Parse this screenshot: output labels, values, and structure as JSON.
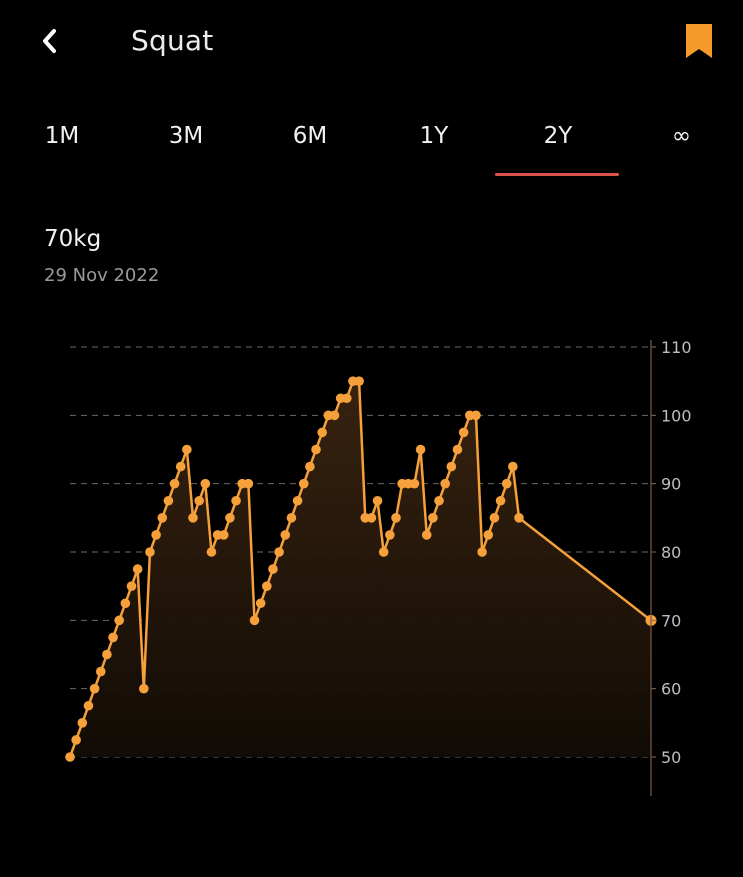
{
  "header": {
    "title": "Squat",
    "back_icon": "chevron-left-icon",
    "bookmark_icon": "bookmark-icon",
    "bookmark_color": "#f59a2b"
  },
  "tabs": {
    "items": [
      "1M",
      "3M",
      "6M",
      "1Y",
      "2Y",
      "∞"
    ],
    "selected": "2Y",
    "underline_color": "#d9534a"
  },
  "selection": {
    "value": "70kg",
    "date": "29 Nov 2022"
  },
  "chart_data": {
    "type": "area",
    "line_color": "#f5a03a",
    "grid": true,
    "grid_style": "dashed",
    "y_axis_position": "right",
    "ylim": [
      50,
      110
    ],
    "yticks": [
      110,
      100,
      90,
      80,
      70,
      60,
      50
    ],
    "values": [
      50,
      52.5,
      55,
      57.5,
      60,
      62.5,
      65,
      67.5,
      70,
      72.5,
      75,
      77.5,
      60,
      80,
      82.5,
      85,
      87.5,
      90,
      92.5,
      95,
      85,
      87.5,
      90,
      80,
      82.5,
      82.5,
      85,
      87.5,
      90,
      90,
      70,
      72.5,
      75,
      77.5,
      80,
      82.5,
      85,
      87.5,
      90,
      92.5,
      95,
      97.5,
      100,
      100,
      102.5,
      102.5,
      105,
      105,
      85,
      85,
      87.5,
      80,
      82.5,
      85,
      90,
      90,
      90,
      95,
      82.5,
      85,
      87.5,
      90,
      92.5,
      95,
      97.5,
      100,
      100,
      80,
      82.5,
      85,
      87.5,
      90,
      92.5,
      85,
      70
    ]
  }
}
